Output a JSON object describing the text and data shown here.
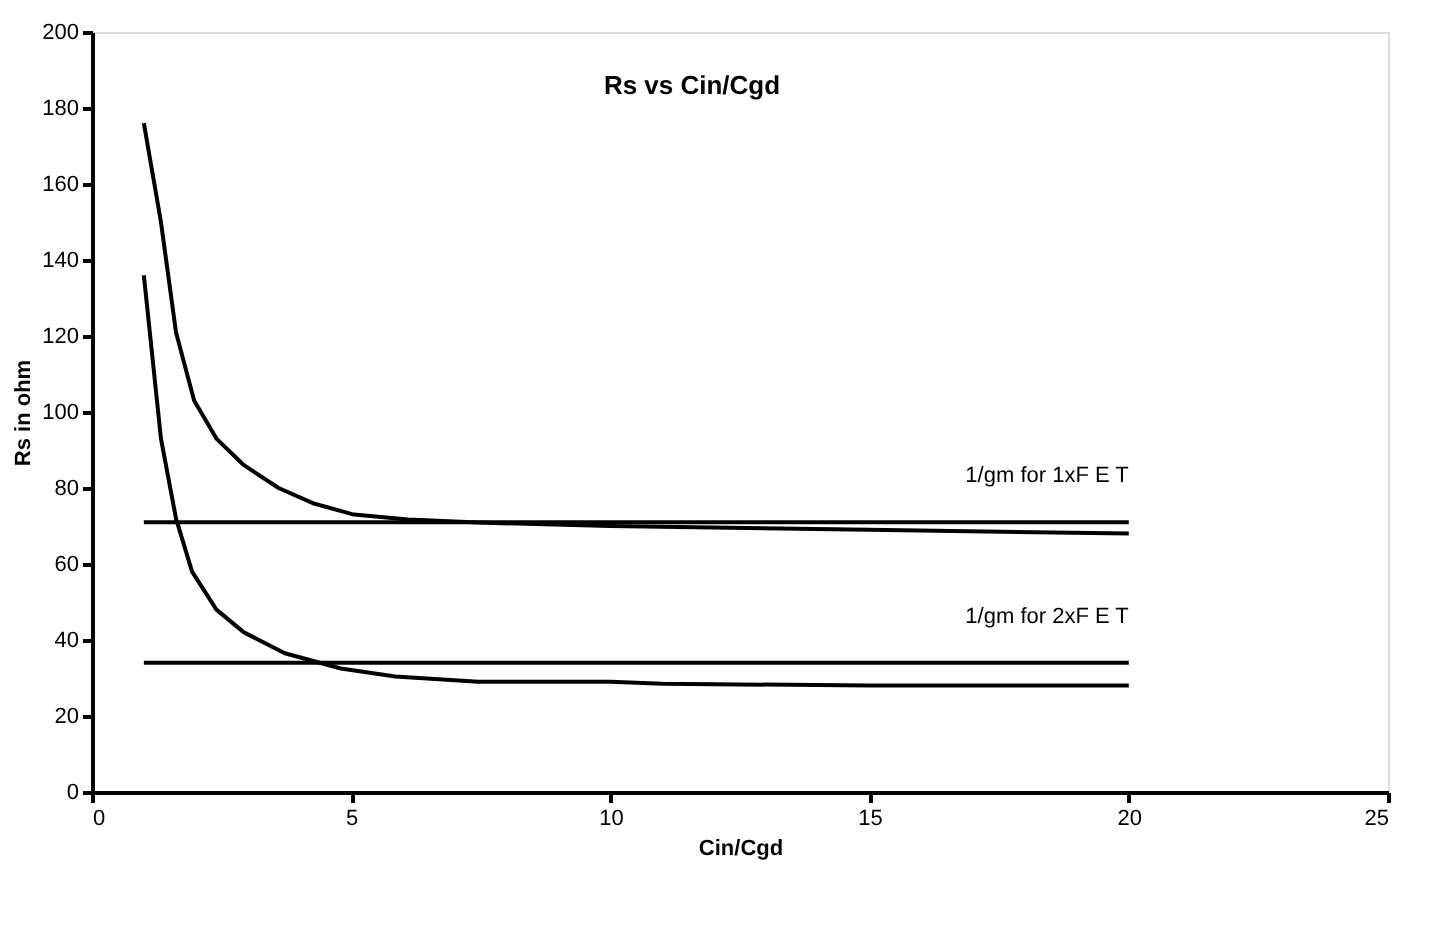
{
  "chart_data": {
    "type": "line",
    "title": "Rs vs Cin/Cgd",
    "xlabel": "Cin/Cgd",
    "ylabel": "Rs in ohm",
    "xlim": [
      0,
      25
    ],
    "xticks": [
      0,
      5,
      10,
      15,
      20,
      25
    ],
    "ylim": [
      0,
      200
    ],
    "yticks": [
      0,
      20,
      40,
      60,
      80,
      100,
      120,
      140,
      160,
      180,
      200
    ],
    "grid": false,
    "legend": false,
    "marker": "none",
    "line_style": "solid",
    "series": [
      {
        "color": "#000000",
        "x": [
          1,
          1.33,
          1.62,
          1.97,
          2.4,
          2.93,
          3.6,
          4.26,
          5.05,
          6.1,
          7.45,
          10,
          15,
          20
        ],
        "values": [
          176,
          150,
          121,
          103,
          93,
          86,
          80,
          76,
          73,
          71.7,
          70.9,
          70,
          69,
          68
        ]
      },
      {
        "color": "#000000",
        "x": [
          1,
          1.33,
          1.62,
          1.93,
          2.4,
          2.93,
          3.72,
          4.8,
          5.85,
          7.45,
          10,
          11,
          15,
          20
        ],
        "values": [
          136,
          93,
          72,
          58,
          48,
          42,
          36.5,
          32.5,
          30.4,
          29,
          29,
          28.5,
          28,
          28
        ]
      },
      {
        "name": "1/gm for 1xF E T",
        "color": "#000000",
        "x": [
          1,
          20
        ],
        "values": [
          71,
          71
        ]
      },
      {
        "name": "1/gm for 2xF E T",
        "color": "#000000",
        "x": [
          1,
          20
        ],
        "values": [
          34,
          34
        ]
      }
    ]
  }
}
